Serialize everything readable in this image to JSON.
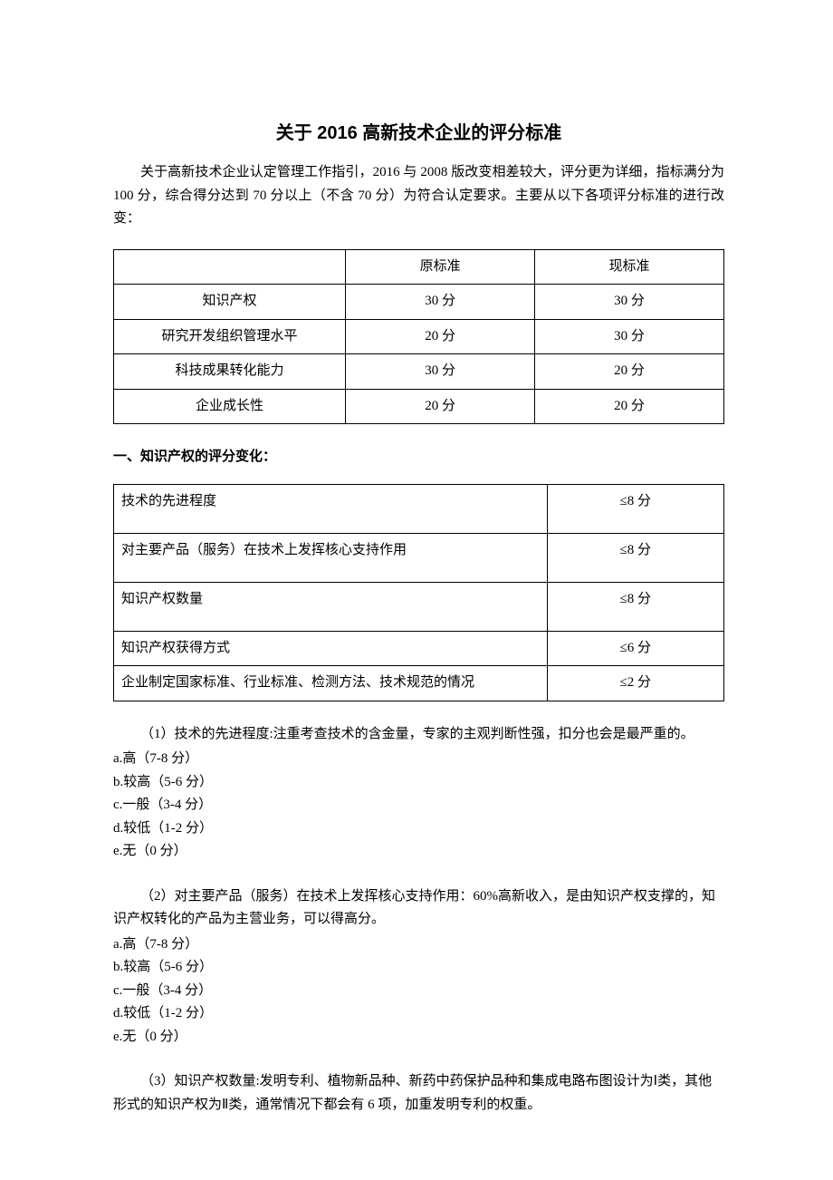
{
  "title": "关于 2016 高新技术企业的评分标准",
  "intro": "关于高新技术企业认定管理工作指引，2016 与 2008 版改变相差较大，评分更为详细，指标满分为 100 分，综合得分达到 70 分以上（不含 70 分）为符合认定要求。主要从以下各项评分标准的进行改变：",
  "table1": {
    "headers": [
      "",
      "原标准",
      "现标准"
    ],
    "rows": [
      [
        "知识产权",
        "30 分",
        "30 分"
      ],
      [
        "研究开发组织管理水平",
        "20 分",
        "30 分"
      ],
      [
        "科技成果转化能力",
        "30 分",
        "20 分"
      ],
      [
        "企业成长性",
        "20 分",
        "20 分"
      ]
    ]
  },
  "section1_heading": "一、知识产权的评分变化：",
  "table2": {
    "rows": [
      {
        "label": "技术的先进程度",
        "score": "≤8 分",
        "tall": true
      },
      {
        "label": "对主要产品（服务）在技术上发挥核心支持作用",
        "score": "≤8 分",
        "tall": true
      },
      {
        "label": "知识产权数量",
        "score": "≤8 分",
        "tall": true
      },
      {
        "label": "知识产权获得方式",
        "score": "≤6 分",
        "tall": false
      },
      {
        "label": "企业制定国家标准、行业标准、检测方法、技术规范的情况",
        "score": "≤2 分",
        "tall": false
      }
    ]
  },
  "p1": {
    "lead": "（1）技术的先进程度:注重考查技术的含金量，专家的主观判断性强，扣分也会是最严重的。",
    "opts": [
      "a.高（7-8 分）",
      "b.较高（5-6 分）",
      "c.一般（3-4 分）",
      "d.较低（1-2 分）",
      "e.无（0 分）"
    ]
  },
  "p2": {
    "lead": "（2）对主要产品（服务）在技术上发挥核心支持作用：60%高新收入，是由知识产权支撑的，知识产权转化的产品为主营业务，可以得高分。",
    "opts": [
      "a.高（7-8 分）",
      "b.较高（5-6 分）",
      "c.一般（3-4 分）",
      "d.较低（1-2 分）",
      "e.无（0 分）"
    ]
  },
  "p3": {
    "lead": "（3）知识产权数量:发明专利、植物新品种、新药中药保护品种和集成电路布图设计为Ⅰ类，其他形式的知识产权为Ⅱ类，通常情况下都会有 6 项，加重发明专利的权重。"
  },
  "colors": {
    "text": "#000000",
    "background": "#ffffff",
    "border": "#000000"
  }
}
